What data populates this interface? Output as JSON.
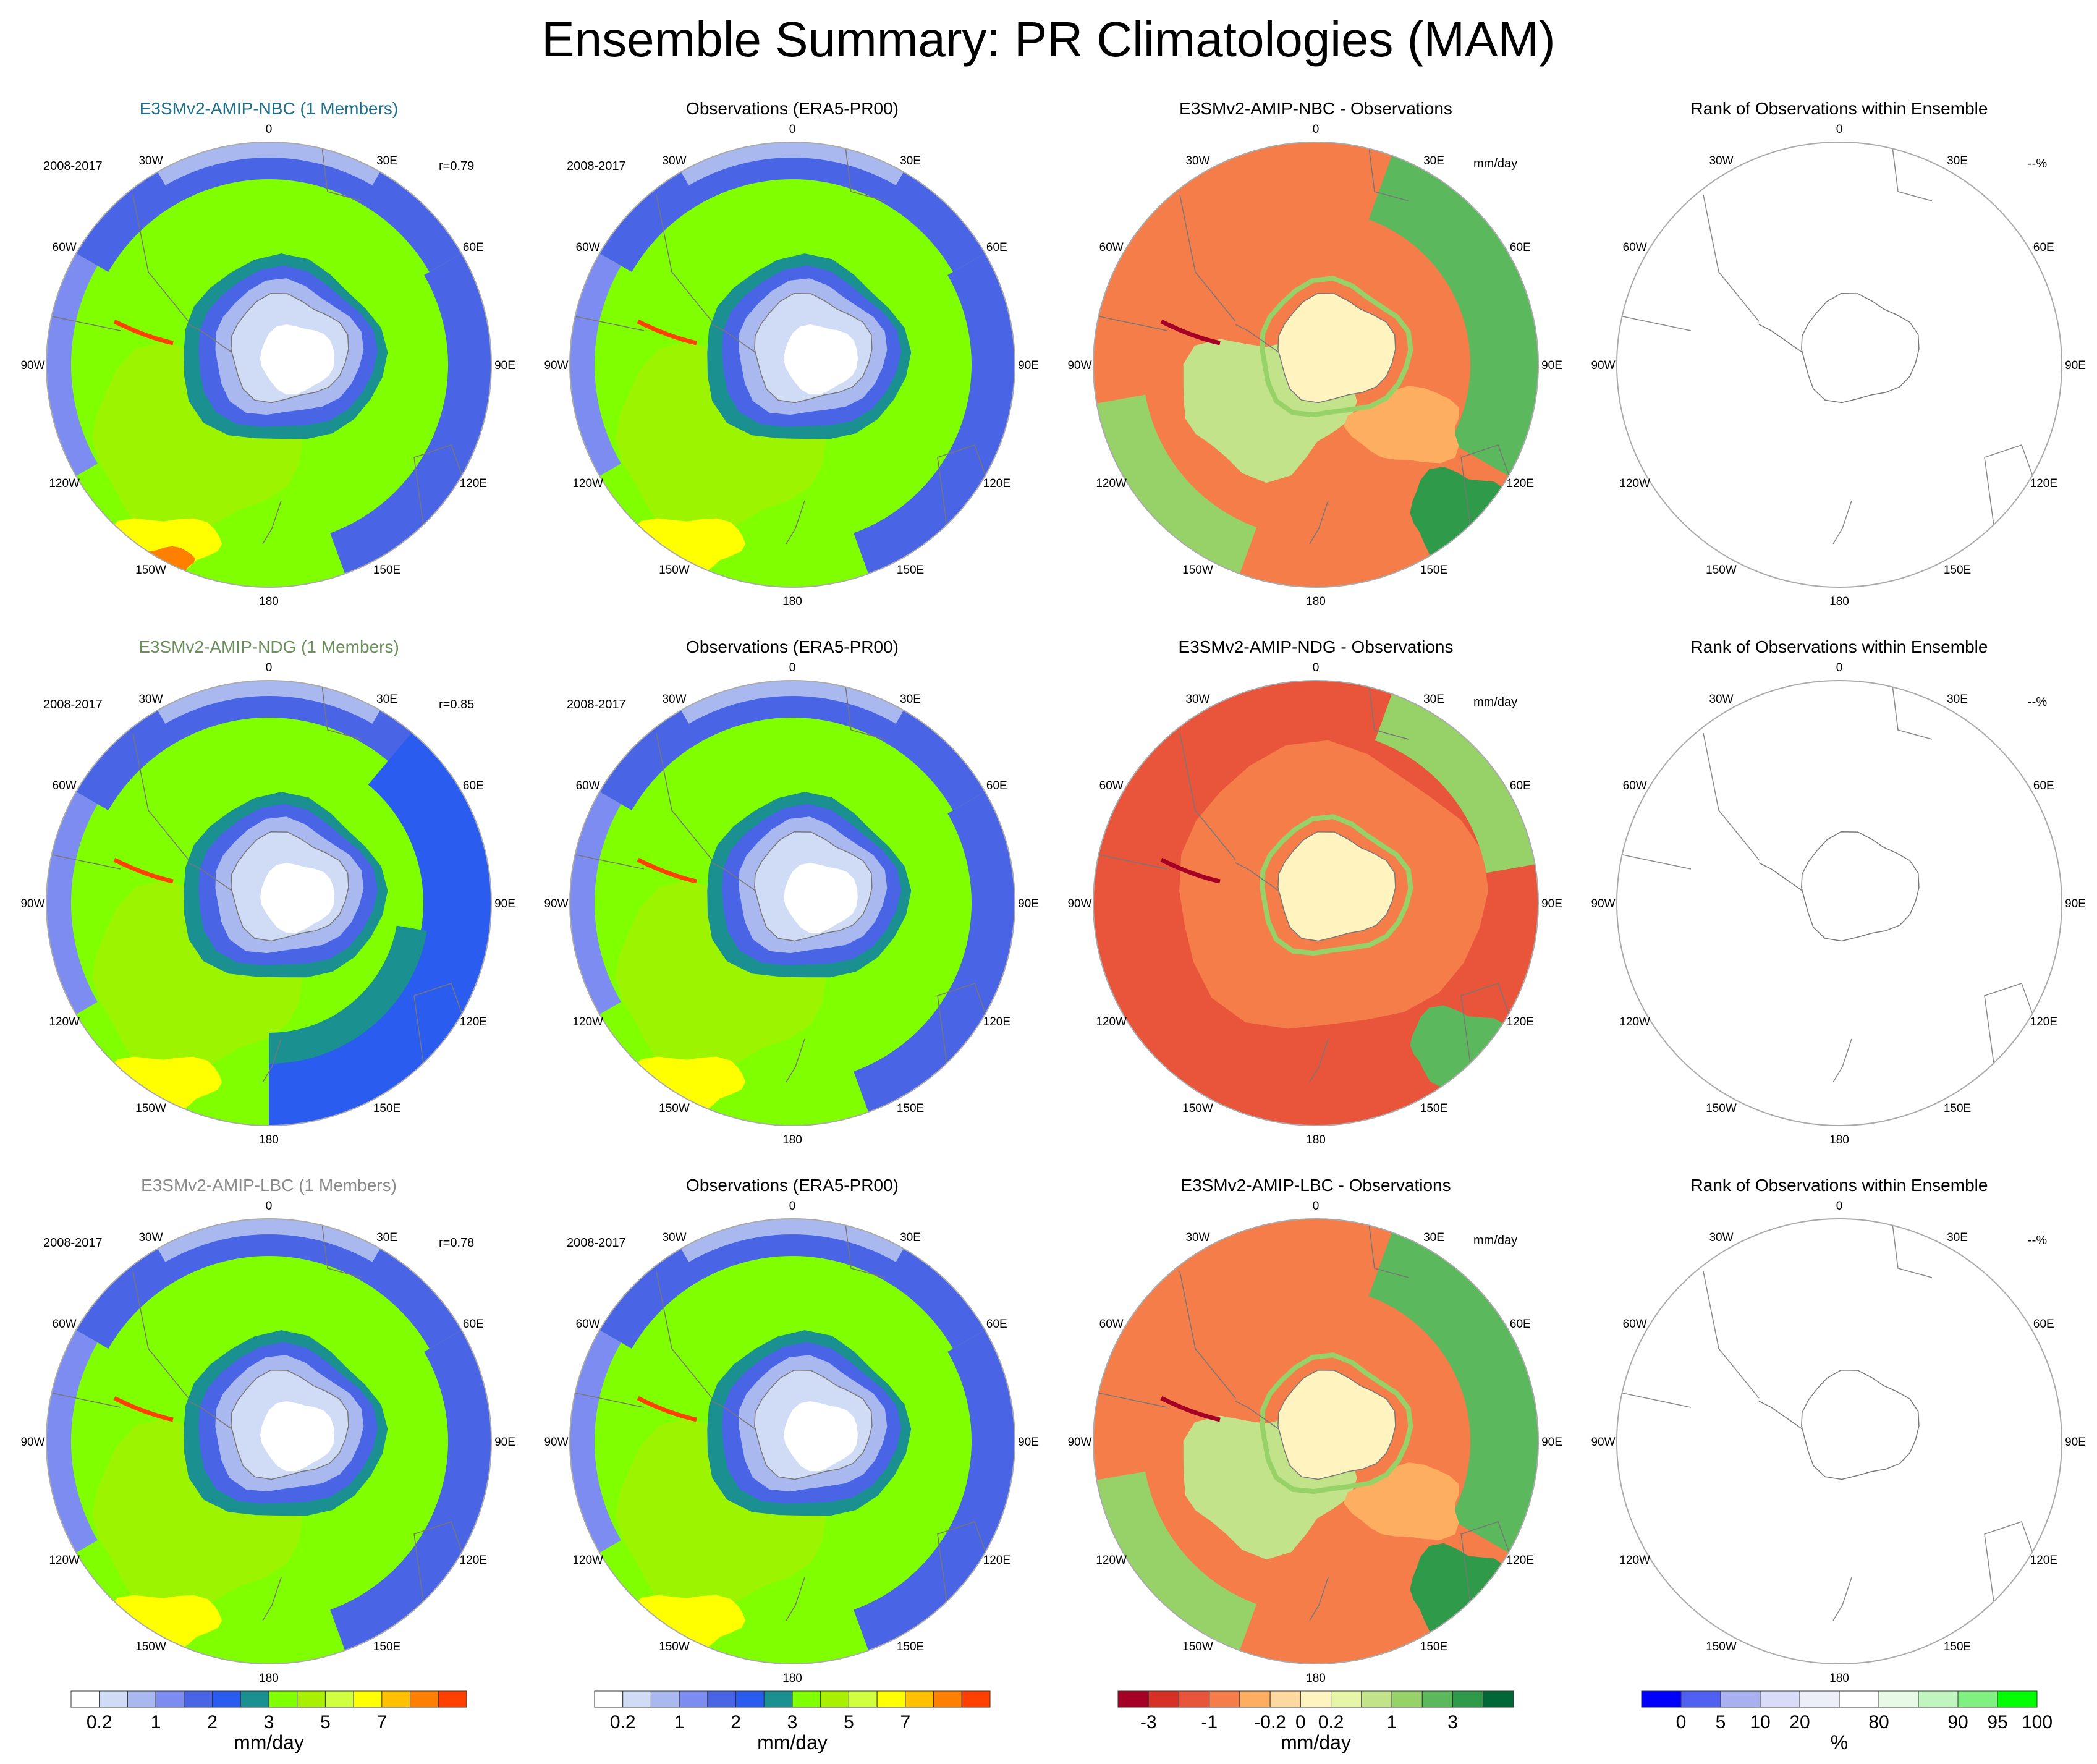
{
  "title": "Ensemble Summary: PR Climatologies (MAM)",
  "lon_labels": [
    "0",
    "30E",
    "60E",
    "90E",
    "120E",
    "150E",
    "180",
    "150W",
    "120W",
    "90W",
    "60W",
    "30W"
  ],
  "rows": [
    {
      "model_title": "E3SMv2-AMIP-NBC (1 Members)",
      "model_color": "#1f6e8c",
      "period": "2008-2017",
      "r": "r=0.79",
      "obs_title": "Observations (ERA5-PR00)",
      "diff_title": "E3SMv2-AMIP-NBC - Observations",
      "rank_title": "Rank of Observations within Ensemble",
      "diff_unit": "mm/day",
      "rank_unit": "--%"
    },
    {
      "model_title": "E3SMv2-AMIP-NDG (1 Members)",
      "model_color": "#6a8f5a",
      "period": "2008-2017",
      "r": "r=0.85",
      "obs_title": "Observations (ERA5-PR00)",
      "diff_title": "E3SMv2-AMIP-NDG - Observations",
      "rank_title": "Rank of Observations within Ensemble",
      "diff_unit": "mm/day",
      "rank_unit": "--%"
    },
    {
      "model_title": "E3SMv2-AMIP-LBC (1 Members)",
      "model_color": "#8a8a8a",
      "period": "2008-2017",
      "r": "r=0.78",
      "obs_title": "Observations (ERA5-PR00)",
      "diff_title": "E3SMv2-AMIP-LBC - Observations",
      "rank_title": "Rank of Observations within Ensemble",
      "diff_unit": "mm/day",
      "rank_unit": "--%"
    }
  ],
  "colorbars": [
    {
      "name": "precip-model",
      "colors": [
        "#ffffff",
        "#d0dcf6",
        "#aab8f0",
        "#7d8cf0",
        "#4a64e6",
        "#2a5cf0",
        "#1a9090",
        "#80ff00",
        "#a8f000",
        "#d0ff40",
        "#ffff00",
        "#ffc000",
        "#ff8000",
        "#ff4000"
      ],
      "ticks": [
        {
          "i": 1,
          "t": "0.2"
        },
        {
          "i": 3,
          "t": "1"
        },
        {
          "i": 5,
          "t": "2"
        },
        {
          "i": 7,
          "t": "3"
        },
        {
          "i": 9,
          "t": "5"
        },
        {
          "i": 11,
          "t": "7"
        }
      ],
      "unit": "mm/day"
    },
    {
      "name": "precip-obs",
      "colors": [
        "#ffffff",
        "#d0dcf6",
        "#aab8f0",
        "#7d8cf0",
        "#4a64e6",
        "#2a5cf0",
        "#1a9090",
        "#80ff00",
        "#a8f000",
        "#d0ff40",
        "#ffff00",
        "#ffc000",
        "#ff8000",
        "#ff4000"
      ],
      "ticks": [
        {
          "i": 1,
          "t": "0.2"
        },
        {
          "i": 3,
          "t": "1"
        },
        {
          "i": 5,
          "t": "2"
        },
        {
          "i": 7,
          "t": "3"
        },
        {
          "i": 9,
          "t": "5"
        },
        {
          "i": 11,
          "t": "7"
        }
      ],
      "unit": "mm/day"
    },
    {
      "name": "difference",
      "colors": [
        "#a50026",
        "#d73027",
        "#e8553a",
        "#f47d4a",
        "#fdae61",
        "#fdd9a0",
        "#fff3c0",
        "#e6f5a8",
        "#c2e38a",
        "#96d268",
        "#5cb85c",
        "#2e9a4a",
        "#006837"
      ],
      "ticks": [
        {
          "i": 1,
          "t": "-3"
        },
        {
          "i": 3,
          "t": "-1"
        },
        {
          "i": 5,
          "t": "-0.2"
        },
        {
          "i": 6,
          "t": "0"
        },
        {
          "i": 7,
          "t": "0.2"
        },
        {
          "i": 9,
          "t": "1"
        },
        {
          "i": 11,
          "t": "3"
        }
      ],
      "unit": "mm/day"
    },
    {
      "name": "rank",
      "colors": [
        "#0000ff",
        "#5060f0",
        "#a8b0f0",
        "#d8dcf8",
        "#eceef8",
        "#ffffff",
        "#e6fae6",
        "#c0f5c0",
        "#80f080",
        "#00ff00"
      ],
      "ticks": [
        {
          "i": 1,
          "t": "0"
        },
        {
          "i": 2,
          "t": "5"
        },
        {
          "i": 3,
          "t": "10"
        },
        {
          "i": 4,
          "t": "20"
        },
        {
          "i": 6,
          "t": "80"
        },
        {
          "i": 8,
          "t": "90"
        },
        {
          "i": 9,
          "t": "95"
        },
        {
          "i": 10,
          "t": "100"
        }
      ],
      "unit": "%"
    }
  ],
  "chart_data": [
    {
      "type": "heatmap",
      "title": "E3SMv2-AMIP-NBC (1 Members)",
      "projection": "south-polar-stereographic",
      "field": "PR",
      "season": "MAM",
      "period": "2008-2017",
      "r": 0.79,
      "units": "mm/day"
    },
    {
      "type": "heatmap",
      "title": "Observations (ERA5-PR00)",
      "projection": "south-polar-stereographic",
      "field": "PR",
      "season": "MAM",
      "period": "2008-2017",
      "units": "mm/day"
    },
    {
      "type": "heatmap",
      "title": "E3SMv2-AMIP-NBC - Observations",
      "projection": "south-polar-stereographic",
      "units": "mm/day"
    },
    {
      "type": "heatmap",
      "title": "Rank of Observations within Ensemble",
      "projection": "south-polar-stereographic",
      "units": "%"
    },
    {
      "type": "heatmap",
      "title": "E3SMv2-AMIP-NDG (1 Members)",
      "projection": "south-polar-stereographic",
      "period": "2008-2017",
      "r": 0.85,
      "units": "mm/day"
    },
    {
      "type": "heatmap",
      "title": "Observations (ERA5-PR00)",
      "projection": "south-polar-stereographic",
      "period": "2008-2017",
      "units": "mm/day"
    },
    {
      "type": "heatmap",
      "title": "E3SMv2-AMIP-NDG - Observations",
      "projection": "south-polar-stereographic",
      "units": "mm/day"
    },
    {
      "type": "heatmap",
      "title": "Rank of Observations within Ensemble",
      "projection": "south-polar-stereographic",
      "units": "%"
    },
    {
      "type": "heatmap",
      "title": "E3SMv2-AMIP-LBC (1 Members)",
      "projection": "south-polar-stereographic",
      "period": "2008-2017",
      "r": 0.78,
      "units": "mm/day"
    },
    {
      "type": "heatmap",
      "title": "Observations (ERA5-PR00)",
      "projection": "south-polar-stereographic",
      "period": "2008-2017",
      "units": "mm/day"
    },
    {
      "type": "heatmap",
      "title": "E3SMv2-AMIP-LBC - Observations",
      "projection": "south-polar-stereographic",
      "units": "mm/day"
    },
    {
      "type": "heatmap",
      "title": "Rank of Observations within Ensemble",
      "projection": "south-polar-stereographic",
      "units": "%"
    }
  ]
}
